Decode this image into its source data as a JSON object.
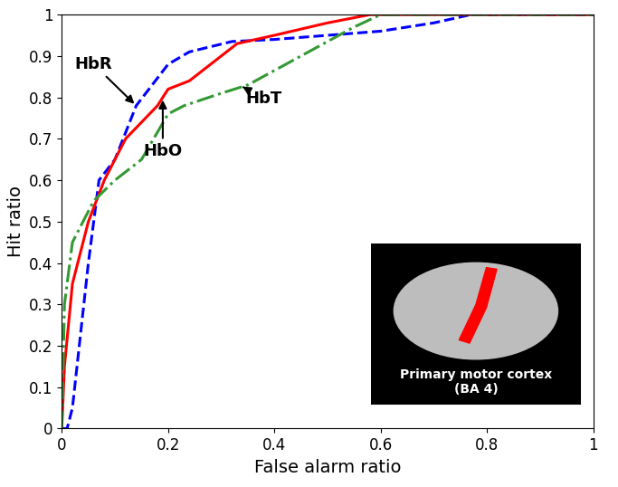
{
  "chart_data": {
    "type": "line",
    "x_label": "False alarm ratio",
    "y_label": "Hit ratio",
    "xlim": [
      0,
      1
    ],
    "ylim": [
      0,
      1
    ],
    "xticks": [
      0,
      0.2,
      0.4,
      0.6,
      0.8,
      1
    ],
    "yticks": [
      0,
      0.1,
      0.2,
      0.3,
      0.4,
      0.5,
      0.6,
      0.7,
      0.8,
      0.9,
      1
    ],
    "grid": false,
    "series": [
      {
        "name": "HbR",
        "color": "#0000ff",
        "line_style": "dashed",
        "x": [
          0,
          0.01,
          0.02,
          0.05,
          0.07,
          0.1,
          0.14,
          0.2,
          0.24,
          0.32,
          0.4,
          0.5,
          0.6,
          0.7,
          0.77,
          1
        ],
        "values": [
          0,
          0,
          0.05,
          0.4,
          0.6,
          0.65,
          0.78,
          0.88,
          0.91,
          0.935,
          0.94,
          0.95,
          0.96,
          0.98,
          1,
          1
        ]
      },
      {
        "name": "HbO",
        "color": "#ff0000",
        "line_style": "solid",
        "x": [
          0,
          0.005,
          0.02,
          0.05,
          0.08,
          0.12,
          0.18,
          0.2,
          0.24,
          0.3,
          0.33,
          0.4,
          0.5,
          0.58,
          0.6,
          1
        ],
        "values": [
          0,
          0.15,
          0.35,
          0.5,
          0.6,
          0.7,
          0.78,
          0.82,
          0.84,
          0.9,
          0.93,
          0.95,
          0.98,
          1,
          1,
          1
        ]
      },
      {
        "name": "HbT",
        "color": "#339933",
        "line_style": "dashdot",
        "x": [
          0,
          0.005,
          0.02,
          0.06,
          0.1,
          0.15,
          0.2,
          0.23,
          0.3,
          0.35,
          0.45,
          0.55,
          0.6,
          1
        ],
        "values": [
          0,
          0.3,
          0.45,
          0.55,
          0.6,
          0.65,
          0.76,
          0.78,
          0.81,
          0.83,
          0.9,
          0.97,
          1,
          1
        ]
      }
    ],
    "annotations": [
      "Primary motor cortex\n(BA 4)"
    ]
  }
}
